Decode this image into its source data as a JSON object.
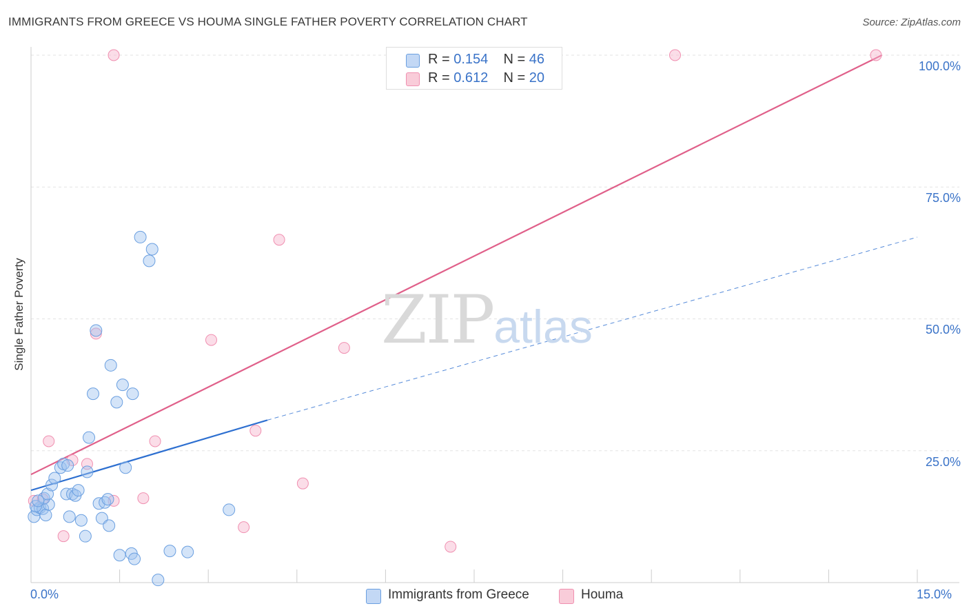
{
  "header": {
    "title": "IMMIGRANTS FROM GREECE VS HOUMA SINGLE FATHER POVERTY CORRELATION CHART",
    "source": "Source: ZipAtlas.com"
  },
  "watermark": {
    "zip": "ZIP",
    "atlas": "atlas"
  },
  "legend_top": {
    "rows": [
      {
        "r_label": "R =",
        "r_value": "0.154",
        "n_label": "N =",
        "n_value": "46"
      },
      {
        "r_label": "R =",
        "r_value": "0.612",
        "n_label": "N =",
        "n_value": "20"
      }
    ]
  },
  "chart_data": {
    "type": "scatter",
    "title": "IMMIGRANTS FROM GREECE VS HOUMA SINGLE FATHER POVERTY CORRELATION CHART",
    "xlabel": "",
    "ylabel": "Single Father Poverty",
    "xlim": [
      0,
      15
    ],
    "ylim": [
      0,
      100
    ],
    "x_tick_labels": [
      "0.0%",
      "15.0%"
    ],
    "y_tick_labels": [
      "100.0%",
      "75.0%",
      "50.0%",
      "25.0%"
    ],
    "y_tick_values": [
      100,
      75,
      50,
      25
    ],
    "grid": true,
    "legend_position": "bottom",
    "colors": {
      "greece": "#6a9fe0",
      "houma": "#f08fb0",
      "greece_line": "#2d6fd0",
      "houma_line": "#e0608a"
    },
    "series": [
      {
        "name": "Immigrants from Greece",
        "r": 0.154,
        "n": 46,
        "trend": {
          "x": [
            0,
            4.0
          ],
          "y": [
            17.5,
            30.8
          ],
          "dashed_to_x": 15,
          "dashed_to_y": 65.5
        },
        "points": [
          [
            0.05,
            12.5
          ],
          [
            0.1,
            13.8
          ],
          [
            0.15,
            14.2
          ],
          [
            0.2,
            14.0
          ],
          [
            0.25,
            12.8
          ],
          [
            0.3,
            14.8
          ],
          [
            0.22,
            16.0
          ],
          [
            0.28,
            16.8
          ],
          [
            0.35,
            18.5
          ],
          [
            0.4,
            19.8
          ],
          [
            0.5,
            21.8
          ],
          [
            0.55,
            22.5
          ],
          [
            0.6,
            16.8
          ],
          [
            0.7,
            16.8
          ],
          [
            0.62,
            22.2
          ],
          [
            0.75,
            16.5
          ],
          [
            0.8,
            17.5
          ],
          [
            0.65,
            12.5
          ],
          [
            0.85,
            11.8
          ],
          [
            0.95,
            21.0
          ],
          [
            0.98,
            27.5
          ],
          [
            1.05,
            35.8
          ],
          [
            0.92,
            8.8
          ],
          [
            1.15,
            15.0
          ],
          [
            1.25,
            15.2
          ],
          [
            1.2,
            12.2
          ],
          [
            1.3,
            15.8
          ],
          [
            1.32,
            10.8
          ],
          [
            1.1,
            47.8
          ],
          [
            1.35,
            41.2
          ],
          [
            1.45,
            34.2
          ],
          [
            1.5,
            5.2
          ],
          [
            1.6,
            21.8
          ],
          [
            1.7,
            5.5
          ],
          [
            1.55,
            37.5
          ],
          [
            1.72,
            35.8
          ],
          [
            1.85,
            65.5
          ],
          [
            2.0,
            61.0
          ],
          [
            2.05,
            63.2
          ],
          [
            1.75,
            4.5
          ],
          [
            2.15,
            0.5
          ],
          [
            2.35,
            6.0
          ],
          [
            2.65,
            5.8
          ],
          [
            3.35,
            13.8
          ],
          [
            0.08,
            14.5
          ],
          [
            0.12,
            15.5
          ]
        ]
      },
      {
        "name": "Houma",
        "r": 0.612,
        "n": 20,
        "trend": {
          "x": [
            0,
            14.4
          ],
          "y": [
            20.5,
            100
          ]
        },
        "points": [
          [
            0.05,
            15.5
          ],
          [
            0.3,
            26.8
          ],
          [
            0.55,
            8.8
          ],
          [
            0.7,
            23.2
          ],
          [
            0.95,
            22.5
          ],
          [
            1.1,
            47.2
          ],
          [
            1.4,
            15.5
          ],
          [
            1.4,
            100
          ],
          [
            1.9,
            16.0
          ],
          [
            2.1,
            26.8
          ],
          [
            3.05,
            46.0
          ],
          [
            3.6,
            10.5
          ],
          [
            3.8,
            28.8
          ],
          [
            4.2,
            65.0
          ],
          [
            4.6,
            18.8
          ],
          [
            5.3,
            44.5
          ],
          [
            7.1,
            6.8
          ],
          [
            10.9,
            100
          ],
          [
            14.3,
            100
          ],
          [
            0.2,
            15.8
          ]
        ]
      }
    ]
  },
  "legend_bottom": {
    "items": [
      {
        "label": "Immigrants from Greece"
      },
      {
        "label": "Houma"
      }
    ]
  }
}
